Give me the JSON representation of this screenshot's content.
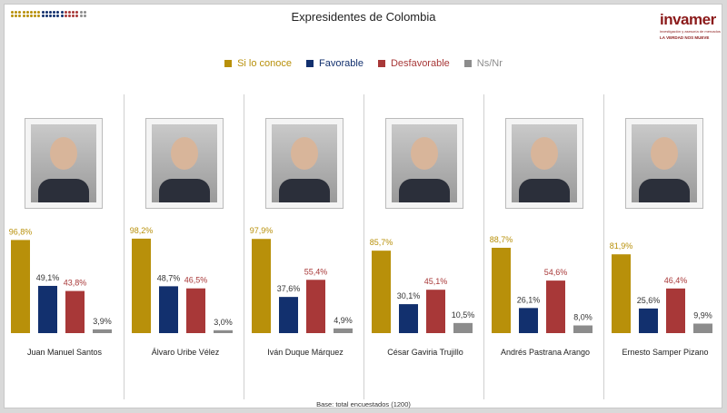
{
  "title": "Expresidentes de Colombia",
  "logo": {
    "name": "invamer",
    "subtitle": "investigación y asesoría de mercados",
    "tagline": "LA VERDAD NOS MUEVE"
  },
  "footer": "Base: total encuestados (1200)",
  "chart_data": {
    "type": "bar",
    "title": "Expresidentes de Colombia",
    "categories": [
      "Juan Manuel Santos",
      "Álvaro Uribe Vélez",
      "Iván Duque Márquez",
      "César Gaviria Trujillo",
      "Andrés Pastrana Arango",
      "Ernesto Samper Pizano"
    ],
    "series": [
      {
        "name": "Si lo conoce",
        "color": "#b8900a",
        "values": [
          96.8,
          98.2,
          97.9,
          85.7,
          88.7,
          81.9
        ],
        "labels": [
          "96,8%",
          "98,2%",
          "97,9%",
          "85,7%",
          "88,7%",
          "81,9%"
        ]
      },
      {
        "name": "Favorable",
        "color": "#12306e",
        "values": [
          49.1,
          48.7,
          37.6,
          30.1,
          26.1,
          25.6
        ],
        "labels": [
          "49,1%",
          "48,7%",
          "37,6%",
          "30,1%",
          "26,1%",
          "25,6%"
        ]
      },
      {
        "name": "Desfavorable",
        "color": "#a83838",
        "values": [
          43.8,
          46.5,
          55.4,
          45.1,
          54.6,
          46.4
        ],
        "labels": [
          "43,8%",
          "46,5%",
          "55,4%",
          "45,1%",
          "54,6%",
          "46,4%"
        ]
      },
      {
        "name": "Ns/Nr",
        "color": "#8c8c8c",
        "values": [
          3.9,
          3.0,
          4.9,
          10.5,
          8.0,
          9.9
        ],
        "labels": [
          "3,9%",
          "3,0%",
          "4,9%",
          "10,5%",
          "8,0%",
          "9,9%"
        ]
      }
    ],
    "legend_position": "top",
    "grid": false,
    "ylim": [
      0,
      100
    ]
  }
}
